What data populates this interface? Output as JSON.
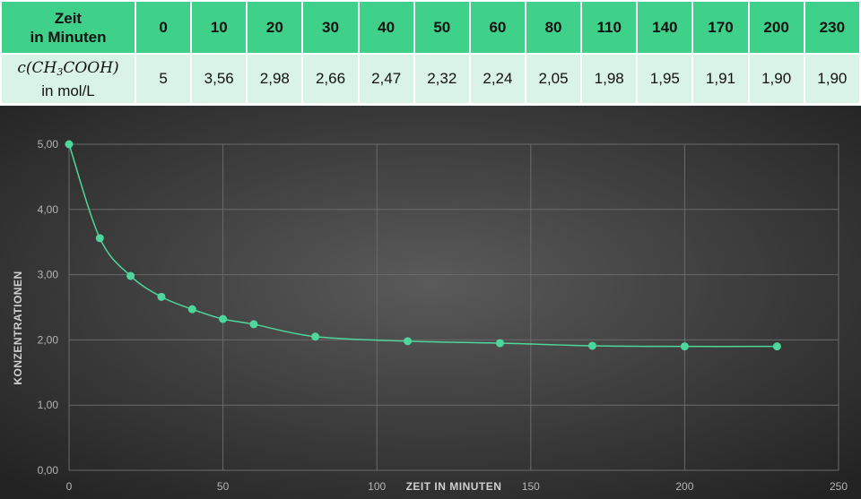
{
  "table": {
    "row1_label_line1": "Zeit",
    "row1_label_line2": "in Minuten",
    "row2_formula_c": "c(CH",
    "row2_formula_sub": "3",
    "row2_formula_rest": "COOH)",
    "row2_label_line2": "in mol/L",
    "times": [
      "0",
      "10",
      "20",
      "30",
      "40",
      "50",
      "60",
      "80",
      "110",
      "140",
      "170",
      "200",
      "230"
    ],
    "concentrations": [
      "5",
      "3,56",
      "2,98",
      "2,66",
      "2,47",
      "2,32",
      "2,24",
      "2,05",
      "1,98",
      "1,95",
      "1,91",
      "1,90",
      "1,90"
    ]
  },
  "chart_data": {
    "type": "line",
    "xlabel": "ZEIT IN MINUTEN",
    "ylabel": "KONZENTRATIONEN",
    "xlim": [
      0,
      250
    ],
    "ylim": [
      0,
      5
    ],
    "x_ticks": [
      0,
      50,
      100,
      150,
      200,
      250
    ],
    "x_tick_labels": [
      "0",
      "50",
      "100",
      "150",
      "200",
      "250"
    ],
    "y_ticks": [
      0,
      1,
      2,
      3,
      4,
      5
    ],
    "y_tick_labels": [
      "0,00",
      "1,00",
      "2,00",
      "3,00",
      "4,00",
      "5,00"
    ],
    "grid": true,
    "series": [
      {
        "x": [
          0,
          10,
          20,
          30,
          40,
          50,
          60,
          80,
          110,
          140,
          170,
          200,
          230
        ],
        "y": [
          5,
          3.56,
          2.98,
          2.66,
          2.47,
          2.32,
          2.24,
          2.05,
          1.98,
          1.95,
          1.91,
          1.9,
          1.9
        ]
      }
    ],
    "colors": {
      "line": "#4fd69c",
      "background_center": "#5a5a5a",
      "background_edge": "#232323",
      "grid": "#6a6a6a"
    }
  }
}
